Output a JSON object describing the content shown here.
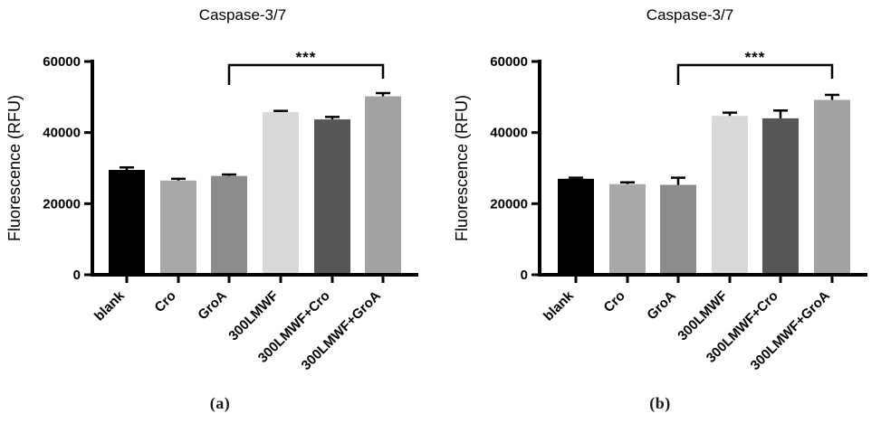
{
  "figure": {
    "name": "Caspase-3/7 activity bar charts, panels (a) and (b)"
  },
  "chart_data": [
    {
      "type": "bar",
      "panel": "a",
      "title": "Caspase-3/7",
      "xlabel": "",
      "ylabel": "Fluorescence (RFU)",
      "ylim": [
        0,
        60000
      ],
      "yticks": [
        0,
        20000,
        40000,
        60000
      ],
      "grid": false,
      "legend_position": "none",
      "categories": [
        "blank",
        "Cro",
        "GroA",
        "300LMWF",
        "300LMWF+Cro",
        "300LMWF+GroA"
      ],
      "values": [
        29500,
        26500,
        27800,
        45800,
        43700,
        50200
      ],
      "errors": [
        700,
        500,
        400,
        300,
        700,
        900
      ],
      "bar_colors": [
        "#000000",
        "#a9a9a9",
        "#8c8c8c",
        "#d9d9d9",
        "#565656",
        "#a3a3a3"
      ],
      "significance": {
        "from": "GroA",
        "to": "300LMWF+GroA",
        "label": "***"
      },
      "caption": "(a)"
    },
    {
      "type": "bar",
      "panel": "b",
      "title": "Caspase-3/7",
      "xlabel": "",
      "ylabel": "Fluorescence (RFU)",
      "ylim": [
        0,
        60000
      ],
      "yticks": [
        0,
        20000,
        40000,
        60000
      ],
      "grid": false,
      "legend_position": "none",
      "categories": [
        "blank",
        "Cro",
        "GroA",
        "300LMWF",
        "300LMWF+Cro",
        "300LMWF+GroA"
      ],
      "values": [
        27000,
        25500,
        25300,
        44700,
        44000,
        49200
      ],
      "errors": [
        300,
        500,
        2000,
        900,
        2200,
        1400
      ],
      "bar_colors": [
        "#000000",
        "#a9a9a9",
        "#8c8c8c",
        "#d9d9d9",
        "#565656",
        "#a3a3a3"
      ],
      "significance": {
        "from": "GroA",
        "to": "300LMWF+GroA",
        "label": "***"
      },
      "caption": "(b)"
    }
  ]
}
